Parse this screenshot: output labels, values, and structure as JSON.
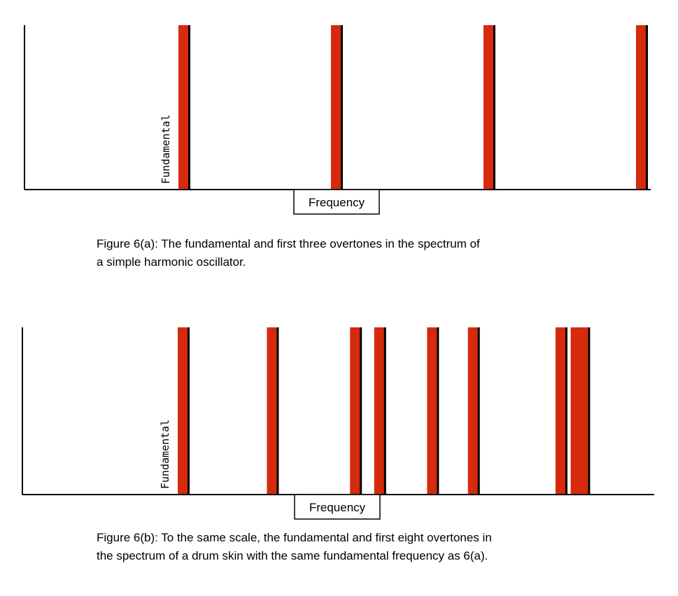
{
  "chart_data": [
    {
      "type": "bar",
      "id": "a",
      "xlabel": "Frequency",
      "bar_label": "Fundamental",
      "values": [
        1,
        2,
        3,
        4
      ],
      "bar_height": 1,
      "caption_lines": [
        "Figure 6(a): The fundamental and first three overtones in the spectrum of",
        "a simple harmonic oscillator."
      ]
    },
    {
      "type": "bar",
      "id": "b",
      "xlabel": "Frequency",
      "bar_label": "Fundamental",
      "values": [
        1,
        1.59,
        2.14,
        2.3,
        2.65,
        2.92,
        3.5,
        3.6,
        3.65
      ],
      "bar_height": 1,
      "caption_lines": [
        "Figure 6(b): To the same scale, the fundamental and first eight overtones in",
        "the spectrum of a drum skin with the same fundamental frequency as 6(a)."
      ]
    }
  ],
  "colors": {
    "bar": "#d52a0c",
    "axis": "#000000"
  }
}
